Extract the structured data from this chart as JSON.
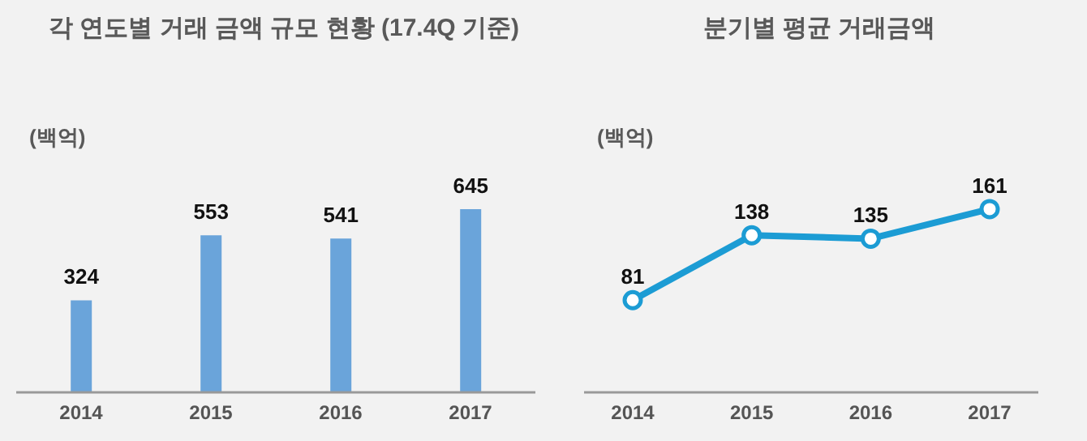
{
  "chart_data": [
    {
      "type": "bar",
      "title": "각 연도별 거래 금액 규모 현황 (17.4Q 기준)",
      "ylabel": "(백억)",
      "categories": [
        "2014",
        "2015",
        "2016",
        "2017"
      ],
      "series": [
        {
          "color": "#6aa4da",
          "values": [
            324,
            553,
            541,
            645
          ]
        }
      ],
      "data_labels": true,
      "tick_labels": "x",
      "grid": false,
      "legend": false
    },
    {
      "type": "line",
      "title": "분기별 평균 거래금액",
      "ylabel": "(백억)",
      "categories": [
        "2014",
        "2015",
        "2016",
        "2017"
      ],
      "series": [
        {
          "color": "#1c9cd4",
          "values": [
            81,
            138,
            135,
            161
          ]
        }
      ],
      "data_labels": true,
      "tick_labels": "x",
      "grid": false,
      "legend": false,
      "marker": "circle",
      "line_style": "solid"
    }
  ]
}
